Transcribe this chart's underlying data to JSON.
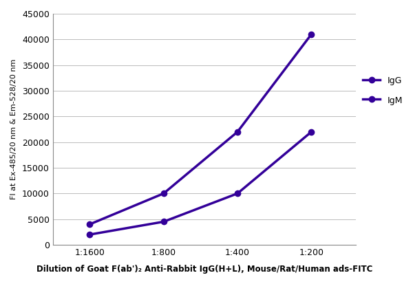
{
  "x_labels": [
    "1:1600",
    "1:800",
    "1:400",
    "1:200"
  ],
  "x_values": [
    1,
    2,
    3,
    4
  ],
  "IgG_values": [
    4000,
    10000,
    22000,
    41000
  ],
  "IgM_values": [
    2000,
    4500,
    10000,
    22000
  ],
  "line_color": "#330099",
  "ylabel": "FI at Ex-485/20 nm & Em-528/20 nm",
  "xlabel": "Dilution of Goat F(ab')₂ Anti-Rabbit IgG(H+L), Mouse/Rat/Human ads-FITC",
  "ylim": [
    0,
    45000
  ],
  "yticks": [
    0,
    5000,
    10000,
    15000,
    20000,
    25000,
    30000,
    35000,
    40000,
    45000
  ],
  "legend_labels": [
    "IgG",
    "IgM"
  ],
  "line_width": 2.5,
  "marker": "o",
  "marker_size": 6,
  "grid_color": "#bbbbbb",
  "background_color": "#ffffff",
  "tick_fontsize": 9,
  "ylabel_fontsize": 8,
  "xlabel_fontsize": 8.5,
  "legend_fontsize": 9
}
